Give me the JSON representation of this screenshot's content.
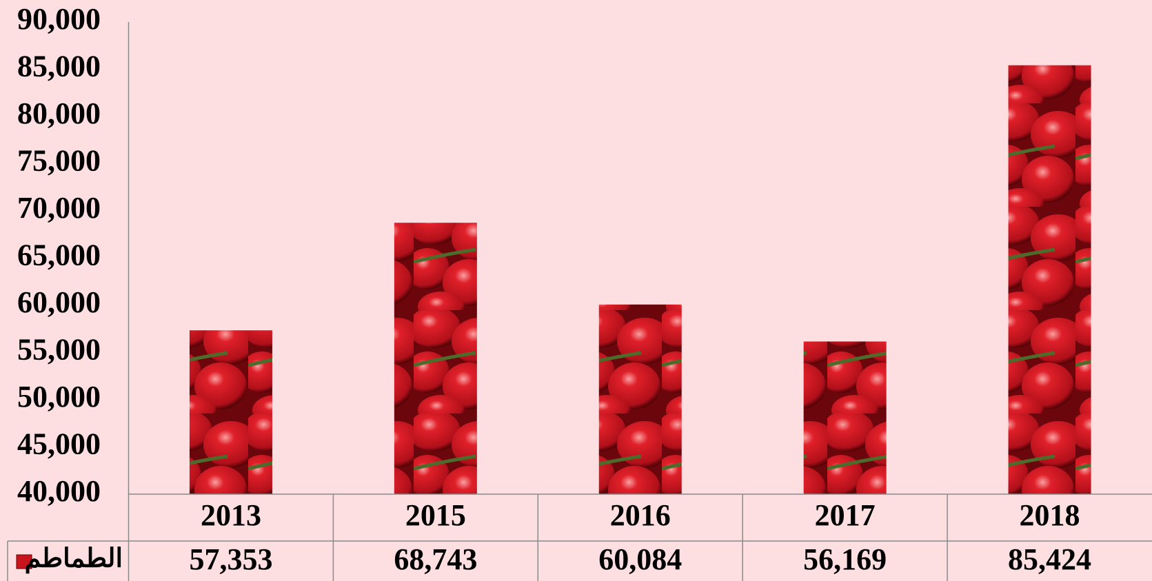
{
  "chart_data": {
    "type": "bar",
    "categories": [
      "2013",
      "2015",
      "2016",
      "2017",
      "2018"
    ],
    "series": [
      {
        "name": "الطماطم",
        "color": "#c8141c",
        "values": [
          57353,
          68743,
          60084,
          56169,
          85424
        ],
        "value_labels": [
          "57,353",
          "68,743",
          "60,084",
          "56,169",
          "85,424"
        ]
      }
    ],
    "ylim": [
      40000,
      90000
    ],
    "yticks": [
      {
        "value": 40000,
        "label": "40,000"
      },
      {
        "value": 45000,
        "label": "45,000"
      },
      {
        "value": 50000,
        "label": "50,000"
      },
      {
        "value": 55000,
        "label": "55,000"
      },
      {
        "value": 60000,
        "label": "60,000"
      },
      {
        "value": 65000,
        "label": "65,000"
      },
      {
        "value": 70000,
        "label": "70,000"
      },
      {
        "value": 75000,
        "label": "75,000"
      },
      {
        "value": 80000,
        "label": "80,000"
      },
      {
        "value": 85000,
        "label": "85,000"
      },
      {
        "value": 90000,
        "label": "90,000"
      }
    ],
    "grid": false
  }
}
